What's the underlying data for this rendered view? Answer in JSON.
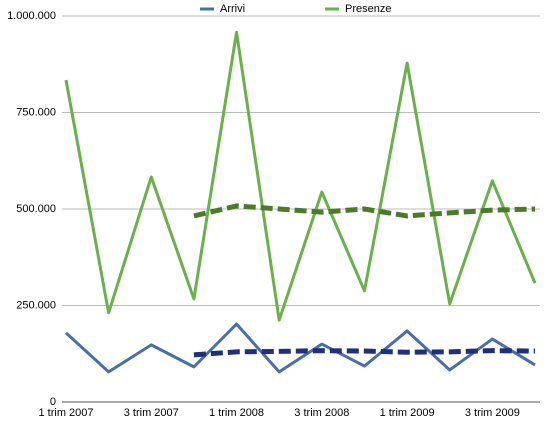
{
  "chart_data": {
    "type": "line",
    "categories": [
      "1 trim 2007",
      null,
      "3 trim 2007",
      null,
      "1 trim 2008",
      null,
      "3 trim 2008",
      null,
      "1 trim 2009",
      null,
      "3 trim 2009",
      null
    ],
    "series": [
      {
        "name": "Arrivi",
        "color": "#4a6fa5",
        "values": [
          179000,
          78000,
          148000,
          91000,
          202000,
          78000,
          150000,
          93000,
          184000,
          83000,
          163000,
          96000
        ]
      },
      {
        "name": "Presenze",
        "color": "#6ab04c",
        "values": [
          834000,
          231000,
          583000,
          267000,
          958000,
          212000,
          544000,
          288000,
          878000,
          254000,
          573000,
          308000
        ]
      },
      {
        "color": "#1f2f7a",
        "dashed": true,
        "values": [
          null,
          null,
          null,
          122000,
          130000,
          131000,
          133000,
          132000,
          129000,
          130000,
          133000,
          132000
        ]
      },
      {
        "color": "#4a7a2a",
        "dashed": true,
        "values": [
          null,
          null,
          null,
          482000,
          508000,
          500000,
          492000,
          500000,
          482000,
          490000,
          497000,
          500000
        ]
      }
    ],
    "ylim": [
      0,
      1000000
    ],
    "yticks": [
      0,
      {
        "value": 250000,
        "label": "250.000"
      },
      {
        "value": 500000,
        "label": "500.000"
      },
      {
        "value": 750000,
        "label": "750.000"
      },
      {
        "value": 1000000,
        "label": "1.000.000"
      }
    ],
    "grid": true,
    "legend": "top"
  }
}
